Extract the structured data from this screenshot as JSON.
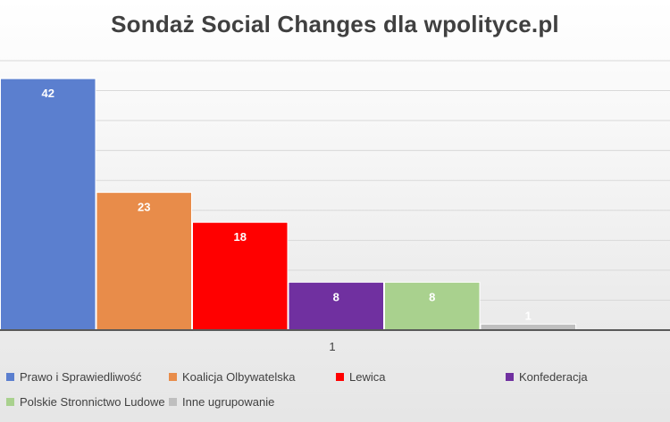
{
  "chart_data": {
    "type": "bar",
    "title": "Sondaż Social Changes dla wpolityce.pl",
    "categories": [
      "1"
    ],
    "series": [
      {
        "name": "Prawo i Sprawiedliwość",
        "values": [
          42
        ],
        "color": "#5b7fcf"
      },
      {
        "name": "Koalicja Olbywatelska",
        "values": [
          23
        ],
        "color": "#e88c4a"
      },
      {
        "name": "Lewica",
        "values": [
          18
        ],
        "color": "#ff0000"
      },
      {
        "name": "Konfederacja",
        "values": [
          8
        ],
        "color": "#7030a0"
      },
      {
        "name": "Polskie Stronnictwo Ludowe",
        "values": [
          8
        ],
        "color": "#a9d18e"
      },
      {
        "name": "Inne ugrupowanie",
        "values": [
          1
        ],
        "color": "#bfbfbf"
      }
    ],
    "ylim": [
      0,
      45
    ],
    "grid": true,
    "legend_position": "bottom",
    "data_labels": true
  }
}
